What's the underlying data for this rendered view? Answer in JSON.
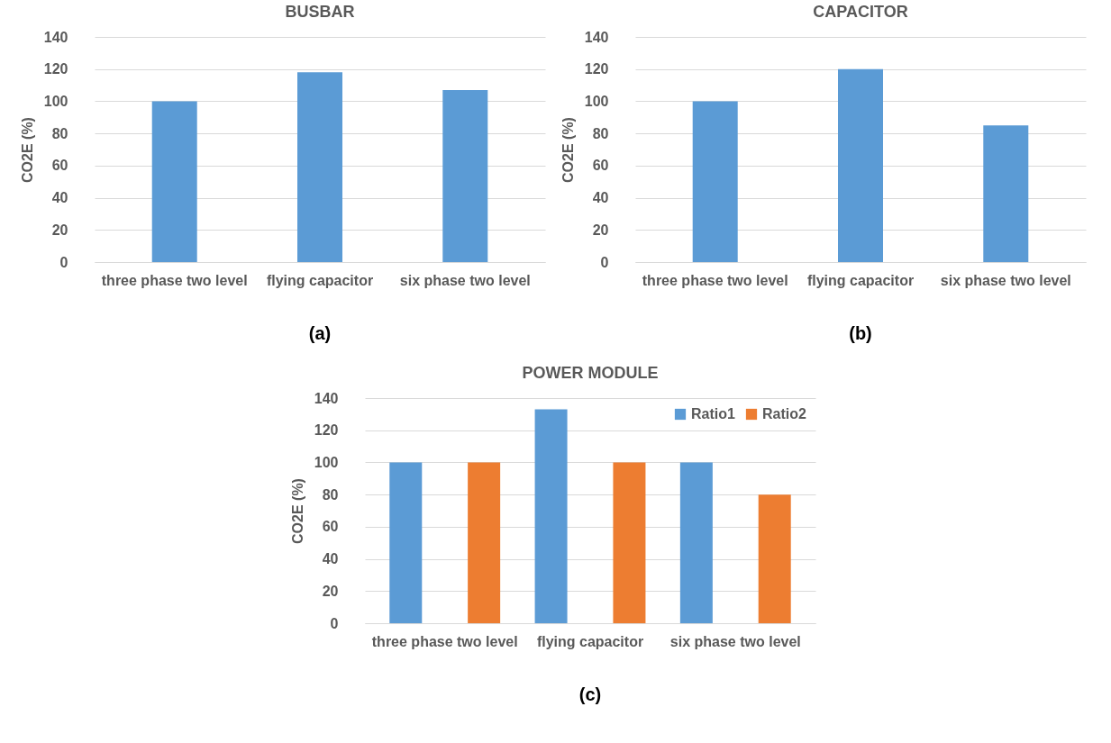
{
  "chart_data": [
    {
      "type": "bar",
      "title": "BUSBAR",
      "ylabel": "CO2E (%)",
      "categories": [
        "three phase two level",
        "flying capacitor",
        "six phase two level"
      ],
      "series": [
        {
          "color": "#5b9bd5",
          "values": [
            100,
            118,
            107
          ]
        }
      ],
      "ylim": [
        0,
        140
      ],
      "yticks": [
        0,
        20,
        40,
        60,
        80,
        100,
        120,
        140
      ],
      "grid": "y",
      "annotations": [
        "(a)"
      ]
    },
    {
      "type": "bar",
      "title": "CAPACITOR",
      "ylabel": "CO2E (%)",
      "categories": [
        "three phase two level",
        "flying capacitor",
        "six phase two level"
      ],
      "series": [
        {
          "color": "#5b9bd5",
          "values": [
            100,
            120,
            85
          ]
        }
      ],
      "ylim": [
        0,
        140
      ],
      "yticks": [
        0,
        20,
        40,
        60,
        80,
        100,
        120,
        140
      ],
      "grid": "y",
      "annotations": [
        "(b)"
      ]
    },
    {
      "type": "bar",
      "title": "POWER MODULE",
      "ylabel": "CO2E (%)",
      "categories": [
        "three phase two level",
        "flying capacitor",
        "six phase two level"
      ],
      "series": [
        {
          "name": "Ratio1",
          "color": "#5b9bd5",
          "values": [
            100,
            133,
            100
          ]
        },
        {
          "name": "Ratio2",
          "color": "#ed7d31",
          "values": [
            100,
            100,
            80
          ]
        }
      ],
      "ylim": [
        0,
        140
      ],
      "yticks": [
        0,
        20,
        40,
        60,
        80,
        100,
        120,
        140
      ],
      "grid": "y",
      "legend": "top right",
      "annotations": [
        "(c)"
      ]
    }
  ]
}
